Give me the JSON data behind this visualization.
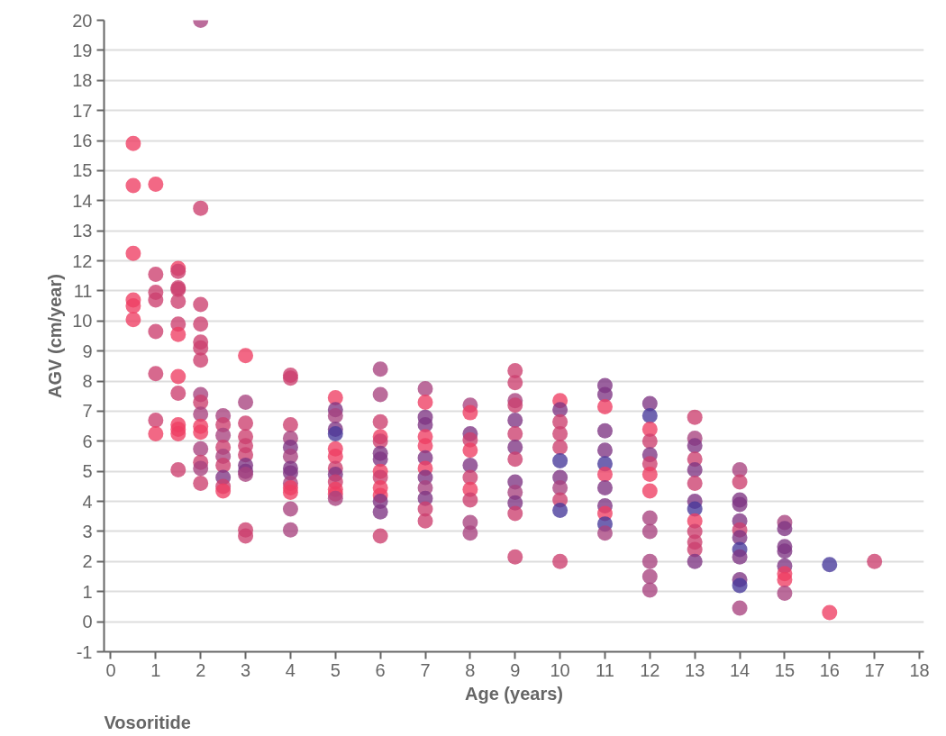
{
  "chart_data": {
    "type": "scatter",
    "xlabel": "Age (years)",
    "ylabel": "AGV (cm/year)",
    "annotations": [
      "Vosoritide"
    ],
    "xlim": [
      -0.15,
      18.1
    ],
    "xticks": [
      0,
      1,
      2,
      3,
      4,
      5,
      6,
      7,
      8,
      9,
      10,
      11,
      12,
      13,
      14,
      15,
      16,
      17,
      18
    ],
    "ylim": [
      -1,
      20
    ],
    "yticks": [
      -1,
      0,
      1,
      2,
      3,
      4,
      5,
      6,
      7,
      8,
      9,
      10,
      11,
      12,
      13,
      14,
      15,
      16,
      17,
      18,
      19,
      20
    ],
    "grid": "y",
    "marker": "circle",
    "series": [
      {
        "x": [
          0.5,
          0.5,
          0.5,
          0.5,
          0.5,
          0.5,
          1,
          1,
          1,
          1,
          1,
          1,
          1,
          1,
          1.5,
          1.5,
          1.5,
          1.5,
          1.5,
          1.5,
          1.5,
          1.5,
          1.5,
          1.5,
          1.5,
          1.5,
          1.5,
          2,
          2,
          2,
          2,
          2,
          2,
          2,
          2,
          2,
          2,
          2,
          2,
          2,
          2,
          2,
          2,
          2.5,
          2.5,
          2.5,
          2.5,
          2.5,
          2.5,
          2.5,
          2.5,
          2.5,
          3,
          3,
          3,
          3,
          3,
          3,
          3,
          3,
          3,
          3,
          3,
          4,
          4,
          4,
          4,
          4,
          4,
          4,
          4,
          4,
          4,
          4,
          4,
          4,
          5,
          5,
          5,
          5,
          5,
          5,
          5,
          5,
          5,
          5,
          5,
          5,
          5,
          6,
          6,
          6,
          6,
          6,
          6,
          6,
          6,
          6,
          6,
          6,
          6,
          6,
          6,
          7,
          7,
          7,
          7,
          7,
          7,
          7,
          7,
          7,
          7,
          7,
          7,
          7,
          8,
          8,
          8,
          8,
          8,
          8,
          8,
          8,
          8,
          8,
          8,
          9,
          9,
          9,
          9,
          9,
          9,
          9,
          9,
          9,
          9,
          9,
          9,
          9,
          10,
          10,
          10,
          10,
          10,
          10,
          10,
          10,
          10,
          10,
          10,
          11,
          11,
          11,
          11,
          11,
          11,
          11,
          11,
          11,
          11,
          11,
          11,
          12,
          12,
          12,
          12,
          12,
          12,
          12,
          12,
          12,
          12,
          12,
          12,
          12,
          13,
          13,
          13,
          13,
          13,
          13,
          13,
          13,
          13,
          13,
          13,
          13,
          13,
          14,
          14,
          14,
          14,
          14,
          14,
          14,
          14,
          14,
          14,
          14,
          14,
          15,
          15,
          15,
          15,
          15,
          15,
          15,
          15,
          16,
          16,
          17
        ],
        "values": [
          15.9,
          14.5,
          12.25,
          10.7,
          10.5,
          10.05,
          14.55,
          11.55,
          10.95,
          10.7,
          9.65,
          8.25,
          6.7,
          6.25,
          11.75,
          11.65,
          11.1,
          11.05,
          10.65,
          9.9,
          9.55,
          8.15,
          7.6,
          6.55,
          6.4,
          6.25,
          5.05,
          20,
          13.75,
          10.55,
          9.9,
          9.3,
          9.1,
          8.7,
          7.55,
          7.3,
          6.9,
          6.5,
          6.3,
          5.75,
          5.3,
          5.1,
          4.6,
          6.85,
          6.55,
          6.2,
          5.8,
          5.5,
          5.2,
          4.8,
          4.5,
          4.35,
          8.85,
          7.3,
          6.6,
          6.15,
          5.85,
          5.55,
          5.2,
          5.0,
          4.9,
          3.05,
          2.85,
          8.2,
          8.1,
          6.55,
          6.1,
          5.8,
          5.5,
          5.1,
          4.95,
          4.6,
          4.45,
          4.3,
          3.75,
          3.05,
          7.45,
          7.05,
          6.85,
          6.4,
          6.25,
          5.75,
          5.5,
          5.1,
          4.9,
          4.65,
          4.4,
          4.25,
          4.1,
          8.4,
          7.55,
          6.65,
          6.15,
          6.0,
          5.6,
          5.4,
          5.0,
          4.8,
          4.45,
          4.2,
          4.0,
          3.65,
          2.85,
          7.75,
          7.3,
          6.8,
          6.55,
          6.15,
          5.85,
          5.45,
          5.1,
          4.8,
          4.45,
          4.1,
          3.75,
          3.35,
          7.2,
          6.95,
          6.25,
          6.05,
          5.7,
          5.2,
          4.8,
          4.4,
          4.05,
          3.3,
          2.95,
          8.35,
          7.95,
          7.35,
          7.2,
          6.7,
          6.25,
          5.8,
          5.4,
          4.65,
          4.3,
          3.95,
          3.6,
          2.15,
          7.35,
          7.05,
          6.65,
          6.25,
          5.8,
          5.35,
          4.8,
          4.45,
          4.05,
          3.7,
          2.0,
          7.85,
          7.55,
          7.15,
          6.35,
          5.7,
          5.25,
          4.9,
          4.45,
          3.85,
          3.6,
          3.25,
          2.95,
          7.25,
          6.85,
          6.4,
          6.0,
          5.55,
          5.25,
          4.9,
          4.35,
          3.45,
          3.0,
          2.0,
          1.5,
          1.05,
          6.8,
          6.1,
          5.85,
          5.4,
          5.05,
          4.6,
          4.0,
          3.75,
          3.35,
          3.0,
          2.65,
          2.4,
          2.0,
          5.05,
          4.65,
          4.05,
          3.9,
          3.35,
          3.05,
          2.8,
          2.4,
          2.15,
          1.4,
          1.2,
          0.45,
          3.3,
          3.1,
          2.5,
          2.35,
          1.85,
          1.6,
          1.4,
          0.95,
          1.9,
          0.3,
          2.0
        ],
        "colors": [
          "#ee3d63",
          "#ee3d63",
          "#ee3d63",
          "#ee3d63",
          "#ee3d63",
          "#ee3d63",
          "#ee3d63",
          "#cc3f6e",
          "#cc3f6e",
          "#cc3f6e",
          "#cc3f6e",
          "#cc3f6e",
          "#cc3f6e",
          "#ee3d63",
          "#ee3d63",
          "#cc3f6e",
          "#cc3f6e",
          "#cc3f6e",
          "#cc3f6e",
          "#cc3f6e",
          "#ee3d63",
          "#ee3d63",
          "#cc3f6e",
          "#ee3d63",
          "#ee3d63",
          "#ee3d63",
          "#cc3f6e",
          "#a8437f",
          "#cc3f6e",
          "#cc3f6e",
          "#cc3f6e",
          "#cc3f6e",
          "#cc3f6e",
          "#cc3f6e",
          "#a8437f",
          "#cc3f6e",
          "#a8437f",
          "#ee3d63",
          "#ee3d63",
          "#a8437f",
          "#cc3f6e",
          "#a8437f",
          "#cc3f6e",
          "#a8437f",
          "#cc3f6e",
          "#a8437f",
          "#cc3f6e",
          "#a8437f",
          "#cc3f6e",
          "#7d3483",
          "#cc3f6e",
          "#ee3d63",
          "#ee3d63",
          "#a8437f",
          "#cc3f6e",
          "#cc3f6e",
          "#cc3f6e",
          "#cc3f6e",
          "#7d3483",
          "#7d3483",
          "#a8437f",
          "#cc3f6e",
          "#cc3f6e",
          "#cc3f6e",
          "#cc3f6e",
          "#cc3f6e",
          "#a8437f",
          "#7d3483",
          "#a8437f",
          "#7d3483",
          "#7d3483",
          "#a8437f",
          "#ee3d63",
          "#ee3d63",
          "#a8437f",
          "#a8437f",
          "#ee3d63",
          "#7d3483",
          "#a8437f",
          "#7d3483",
          "#47389a",
          "#ee3d63",
          "#ee3d63",
          "#cc3f6e",
          "#7d3483",
          "#cc3f6e",
          "#ee3d63",
          "#ee3d63",
          "#a8437f",
          "#a8437f",
          "#a8437f",
          "#cc3f6e",
          "#ee3d63",
          "#cc3f6e",
          "#7d3483",
          "#7d3483",
          "#ee3d63",
          "#cc3f6e",
          "#ee3d63",
          "#ee3d63",
          "#7d3483",
          "#7d3483",
          "#cc3f6e",
          "#a8437f",
          "#ee3d63",
          "#7d3483",
          "#7d3483",
          "#ee3d63",
          "#ee3d63",
          "#7d3483",
          "#ee3d63",
          "#7d3483",
          "#a8437f",
          "#7d3483",
          "#cc3f6e",
          "#cc3f6e",
          "#a8437f",
          "#ee3d63",
          "#7d3483",
          "#cc3f6e",
          "#ee3d63",
          "#7d3483",
          "#cc3f6e",
          "#ee3d63",
          "#cc3f6e",
          "#a8437f",
          "#a8437f",
          "#cc3f6e",
          "#cc3f6e",
          "#a8437f",
          "#cc3f6e",
          "#7d3483",
          "#cc3f6e",
          "#7d3483",
          "#cc3f6e",
          "#7d3483",
          "#a8437f",
          "#7d3483",
          "#cc3f6e",
          "#cc3f6e",
          "#ee3d63",
          "#7d3483",
          "#cc3f6e",
          "#cc3f6e",
          "#cc3f6e",
          "#47389a",
          "#7d3483",
          "#a8437f",
          "#cc3f6e",
          "#47389a",
          "#cc3f6e",
          "#7d3483",
          "#7d3483",
          "#ee3d63",
          "#7d3483",
          "#7d3483",
          "#47389a",
          "#ee3d63",
          "#7d3483",
          "#7d3483",
          "#ee3d63",
          "#47389a",
          "#a8437f",
          "#7d3483",
          "#47389a",
          "#ee3d63",
          "#cc3f6e",
          "#7d3483",
          "#cc3f6e",
          "#ee3d63",
          "#ee3d63",
          "#a8437f",
          "#a8437f",
          "#a8437f",
          "#a8437f",
          "#a8437f",
          "#cc3f6e",
          "#a8437f",
          "#7d3483",
          "#cc3f6e",
          "#7d3483",
          "#cc3f6e",
          "#7d3483",
          "#47389a",
          "#ee3d63",
          "#cc3f6e",
          "#cc3f6e",
          "#cc3f6e",
          "#7d3483",
          "#a8437f",
          "#cc3f6e",
          "#7d3483",
          "#7d3483",
          "#7d3483",
          "#cc3f6e",
          "#7d3483",
          "#47389a",
          "#7d3483",
          "#7d3483",
          "#47389a",
          "#a8437f",
          "#a8437f",
          "#7d3483",
          "#7d3483",
          "#7d3483",
          "#7d3483",
          "#ee3d63",
          "#ee3d63",
          "#a8437f",
          "#47389a",
          "#ee3d63",
          "#cc3f6e"
        ]
      }
    ]
  }
}
